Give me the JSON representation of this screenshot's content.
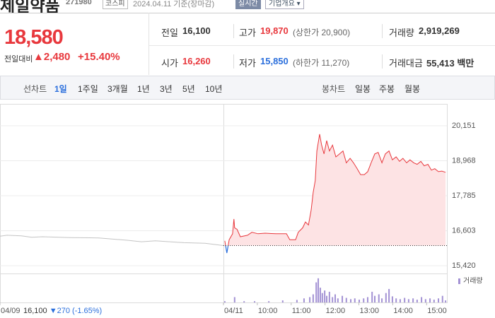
{
  "header": {
    "name": "제일약품",
    "code": "271980",
    "market": "코스피",
    "date": "2024.04.11 기준(장마감)",
    "realtime": "실시간",
    "company_info": "기업개요"
  },
  "price": {
    "current": "18,580",
    "change_label": "전일대비",
    "change": "▲2,480",
    "change_rate": "+15.40%"
  },
  "stats": [
    [
      {
        "label": "전일",
        "value": "16,100"
      },
      {
        "label": "고가",
        "value": "19,870",
        "note": "(상한가 20,900)"
      },
      {
        "label": "거래량",
        "value": "2,919,269"
      }
    ],
    [
      {
        "label": "시가",
        "value": "16,260"
      },
      {
        "label": "저가",
        "value": "15,850",
        "note": "(하한가 11,270)"
      },
      {
        "label": "거래대금",
        "value": "55,413 백만"
      }
    ]
  ],
  "tabs": {
    "line_chart": "선차트",
    "periods": [
      "1일",
      "1주일",
      "3개월",
      "1년",
      "3년",
      "5년",
      "10년"
    ],
    "candle_chart": "봉차트",
    "candles": [
      "일봉",
      "주봉",
      "월봉"
    ]
  },
  "prev_close": {
    "price": "16,100",
    "change": "▼270",
    "rate": "(-1.65%)"
  },
  "chart_data": {
    "type": "line",
    "xlim": [
      2.4,
      15.6
    ],
    "xticks": [
      {
        "value": 2.4,
        "label": "04/09"
      },
      {
        "value": 9,
        "label": "04/11"
      },
      {
        "value": 10,
        "label": "10:00"
      },
      {
        "value": 11,
        "label": "11:00"
      },
      {
        "value": 12,
        "label": "12:00"
      },
      {
        "value": 13,
        "label": "13:00"
      },
      {
        "value": 14,
        "label": "14:00"
      },
      {
        "value": 15,
        "label": "15:00"
      }
    ],
    "ylim": [
      15205,
      20701
    ],
    "yticks": [
      {
        "value": 15420,
        "label": "15,420"
      },
      {
        "value": 16603,
        "label": "16,603"
      },
      {
        "value": 17785,
        "label": "17,785"
      },
      {
        "value": 18968,
        "label": "18,968"
      },
      {
        "value": 20151,
        "label": "20,151"
      }
    ],
    "grid": true,
    "baseline": 16100,
    "series": [
      {
        "color": "#c4c4c4",
        "x": [
          2.4,
          2.61,
          3.03,
          3.34,
          3.65,
          4.49,
          5.32,
          6.16,
          6.58,
          6.99,
          7.83,
          8.46,
          9.0
        ],
        "values": [
          16420,
          16450,
          16430,
          16380,
          16400,
          16370,
          16360,
          16280,
          16230,
          16260,
          16200,
          16180,
          16100
        ]
      },
      {
        "color": "#e8383d",
        "down_color": "#2b6fdc",
        "fill": "#fde3e4",
        "x": [
          9.04,
          9.1,
          9.17,
          9.27,
          9.31,
          9.33,
          9.4,
          9.5,
          9.71,
          9.84,
          10.02,
          10.23,
          10.55,
          10.86,
          10.96,
          11.13,
          11.21,
          11.34,
          11.42,
          11.51,
          11.59,
          11.65,
          11.71,
          11.76,
          11.84,
          11.9,
          11.97,
          12.05,
          12.13,
          12.22,
          12.32,
          12.43,
          12.53,
          12.63,
          12.74,
          12.84,
          12.95,
          13.05,
          13.16,
          13.26,
          13.36,
          13.47,
          13.57,
          13.68,
          13.78,
          13.89,
          13.99,
          14.1,
          14.2,
          14.3,
          14.41,
          14.51,
          14.62,
          14.72,
          14.83,
          14.93,
          15.04,
          15.14,
          15.24,
          15.35,
          15.45,
          15.56
        ],
        "values": [
          16260,
          15850,
          16300,
          16500,
          17000,
          16700,
          16650,
          16400,
          16450,
          16550,
          16500,
          16520,
          16500,
          16500,
          16300,
          16300,
          16550,
          16700,
          16900,
          16800,
          17300,
          17900,
          18300,
          19300,
          19870,
          19500,
          19200,
          19650,
          19300,
          19500,
          19100,
          19200,
          19300,
          18900,
          19050,
          18900,
          18700,
          18500,
          18500,
          18600,
          18900,
          19200,
          19250,
          18900,
          19200,
          19300,
          19000,
          19100,
          18950,
          19050,
          18900,
          19000,
          18900,
          18850,
          18950,
          18800,
          18850,
          18650,
          18700,
          18600,
          18620,
          18580
        ]
      }
    ],
    "volume": {
      "name": "거래량",
      "color": "#a392d4",
      "ylim": [
        0,
        100000
      ],
      "x": [
        9.04,
        9.33,
        9.61,
        9.92,
        10.34,
        10.75,
        11.17,
        11.38,
        11.55,
        11.65,
        11.74,
        11.8,
        11.86,
        11.92,
        11.99,
        12.05,
        12.13,
        12.22,
        12.3,
        12.38,
        12.51,
        12.63,
        12.76,
        12.88,
        13.01,
        13.14,
        13.26,
        13.39,
        13.47,
        13.59,
        13.68,
        13.8,
        13.89,
        13.99,
        14.1,
        14.22,
        14.35,
        14.47,
        14.6,
        14.72,
        14.85,
        14.97,
        15.1,
        15.22,
        15.35,
        15.47,
        15.56
      ],
      "values": [
        5000,
        21000,
        5000,
        5000,
        5000,
        8000,
        10000,
        16000,
        21000,
        32000,
        79000,
        95000,
        58000,
        37000,
        47000,
        26000,
        42000,
        21000,
        32000,
        16000,
        26000,
        18000,
        13000,
        16000,
        11000,
        16000,
        21000,
        42000,
        26000,
        32000,
        16000,
        37000,
        53000,
        24000,
        16000,
        13000,
        18000,
        13000,
        16000,
        11000,
        21000,
        13000,
        16000,
        11000,
        16000,
        26000,
        8000
      ]
    }
  }
}
